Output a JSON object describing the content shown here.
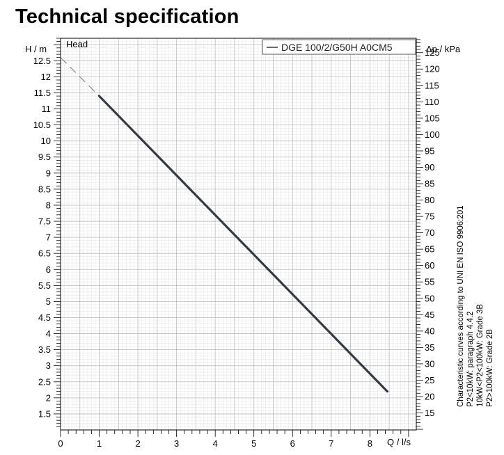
{
  "page": {
    "title": "Technical specification"
  },
  "chart_data": {
    "type": "line",
    "title": "Head",
    "xlabel": "Q / l/s",
    "ylabel_left": "H / m",
    "ylabel_right": "Δp / kPa",
    "x_ticks": [
      "0",
      "1",
      "2",
      "3",
      "4",
      "5",
      "6",
      "7",
      "8"
    ],
    "y_ticks_left": [
      "1.5",
      "2",
      "2.5",
      "3",
      "3.5",
      "4",
      "4.5",
      "5",
      "5.5",
      "6",
      "6.5",
      "7",
      "7.5",
      "8",
      "8.5",
      "9",
      "9.5",
      "10",
      "10.5",
      "11",
      "11.5",
      "12",
      "12.5"
    ],
    "y_ticks_right": [
      "15",
      "20",
      "25",
      "30",
      "35",
      "40",
      "45",
      "50",
      "55",
      "60",
      "65",
      "70",
      "75",
      "80",
      "85",
      "90",
      "95",
      "100",
      "105",
      "110",
      "115",
      "120",
      "125"
    ],
    "xlim": [
      0,
      9.2
    ],
    "ylim_left": [
      1.0,
      13.2
    ],
    "ylim_right": [
      9.8,
      129.4
    ],
    "grid": true,
    "legend": "top-right",
    "series": [
      {
        "name": "DGE 100/2/G50H A0CM5",
        "color": "#333a44",
        "x": [
          1.0,
          8.45
        ],
        "y": [
          11.4,
          2.2
        ],
        "extrapolated": {
          "x": [
            0,
            1.0
          ],
          "y": [
            12.6,
            11.4
          ]
        }
      }
    ]
  },
  "notes": {
    "line1": "Characteristic curves according to UNI EN ISO 9906:201",
    "line2": "P2<10kW:  paragraph 4.4.2",
    "line3": "10kW<P2<100kW: Grade 3B",
    "line4": "P2>100kW: Grade 2B"
  }
}
